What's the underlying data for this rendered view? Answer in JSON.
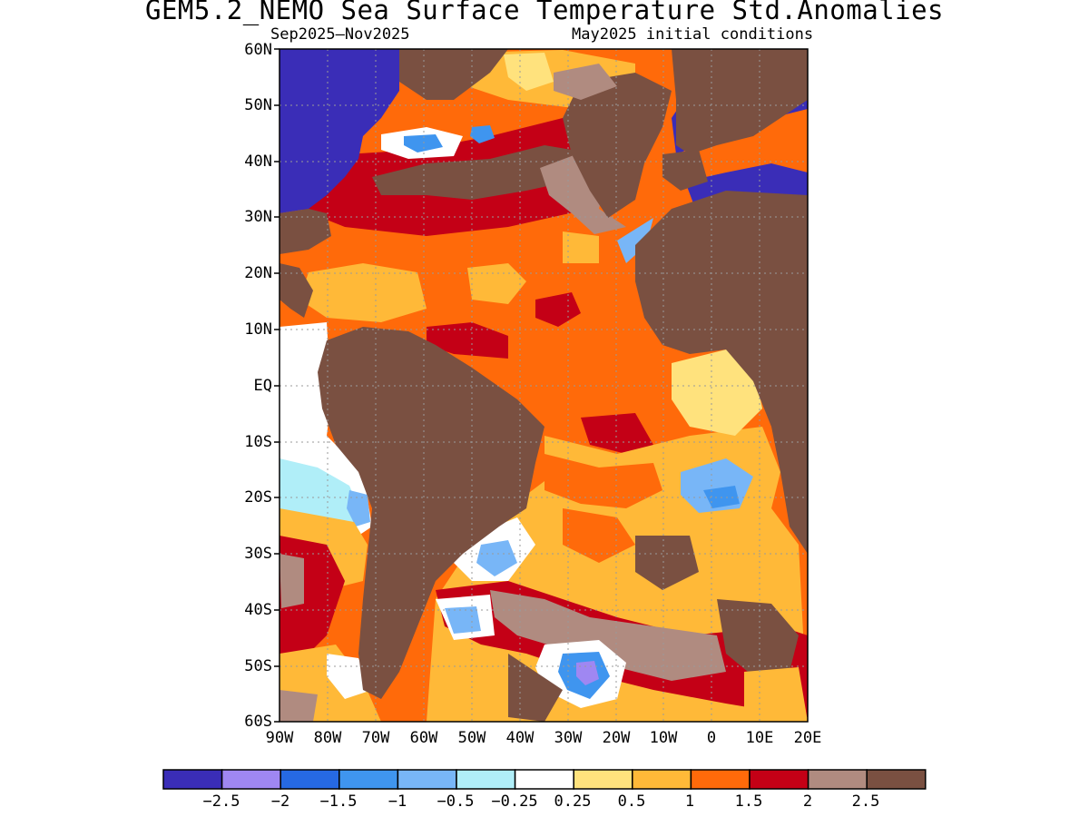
{
  "title": "GEM5.2_NEMO Sea Surface Temperature Std.Anomalies",
  "subtitle_left": "Sep2025–Nov2025",
  "subtitle_right": "May2025 initial conditions",
  "map": {
    "lat_labels": [
      "60N",
      "50N",
      "40N",
      "30N",
      "20N",
      "10N",
      "EQ",
      "10S",
      "20S",
      "30S",
      "40S",
      "50S",
      "60S"
    ],
    "lon_labels": [
      "90W",
      "80W",
      "70W",
      "60W",
      "50W",
      "40W",
      "30W",
      "20W",
      "10W",
      "0",
      "10E",
      "20E"
    ],
    "land_color": "#7a5041",
    "missing_color": "#3a2db7"
  },
  "colorbar": {
    "colors": [
      "#3a2db7",
      "#9f87f2",
      "#2669e3",
      "#3f95ef",
      "#78b6f7",
      "#b0eef8",
      "#ffffff",
      "#ffe27d",
      "#ffb938",
      "#ff6a0a",
      "#c40016",
      "#b08b80",
      "#7a5041"
    ],
    "labels": [
      "−2.5",
      "−2",
      "−1.5",
      "−1",
      "−0.5",
      "−0.25",
      "0.25",
      "0.5",
      "1",
      "1.5",
      "2",
      "2.5"
    ]
  }
}
